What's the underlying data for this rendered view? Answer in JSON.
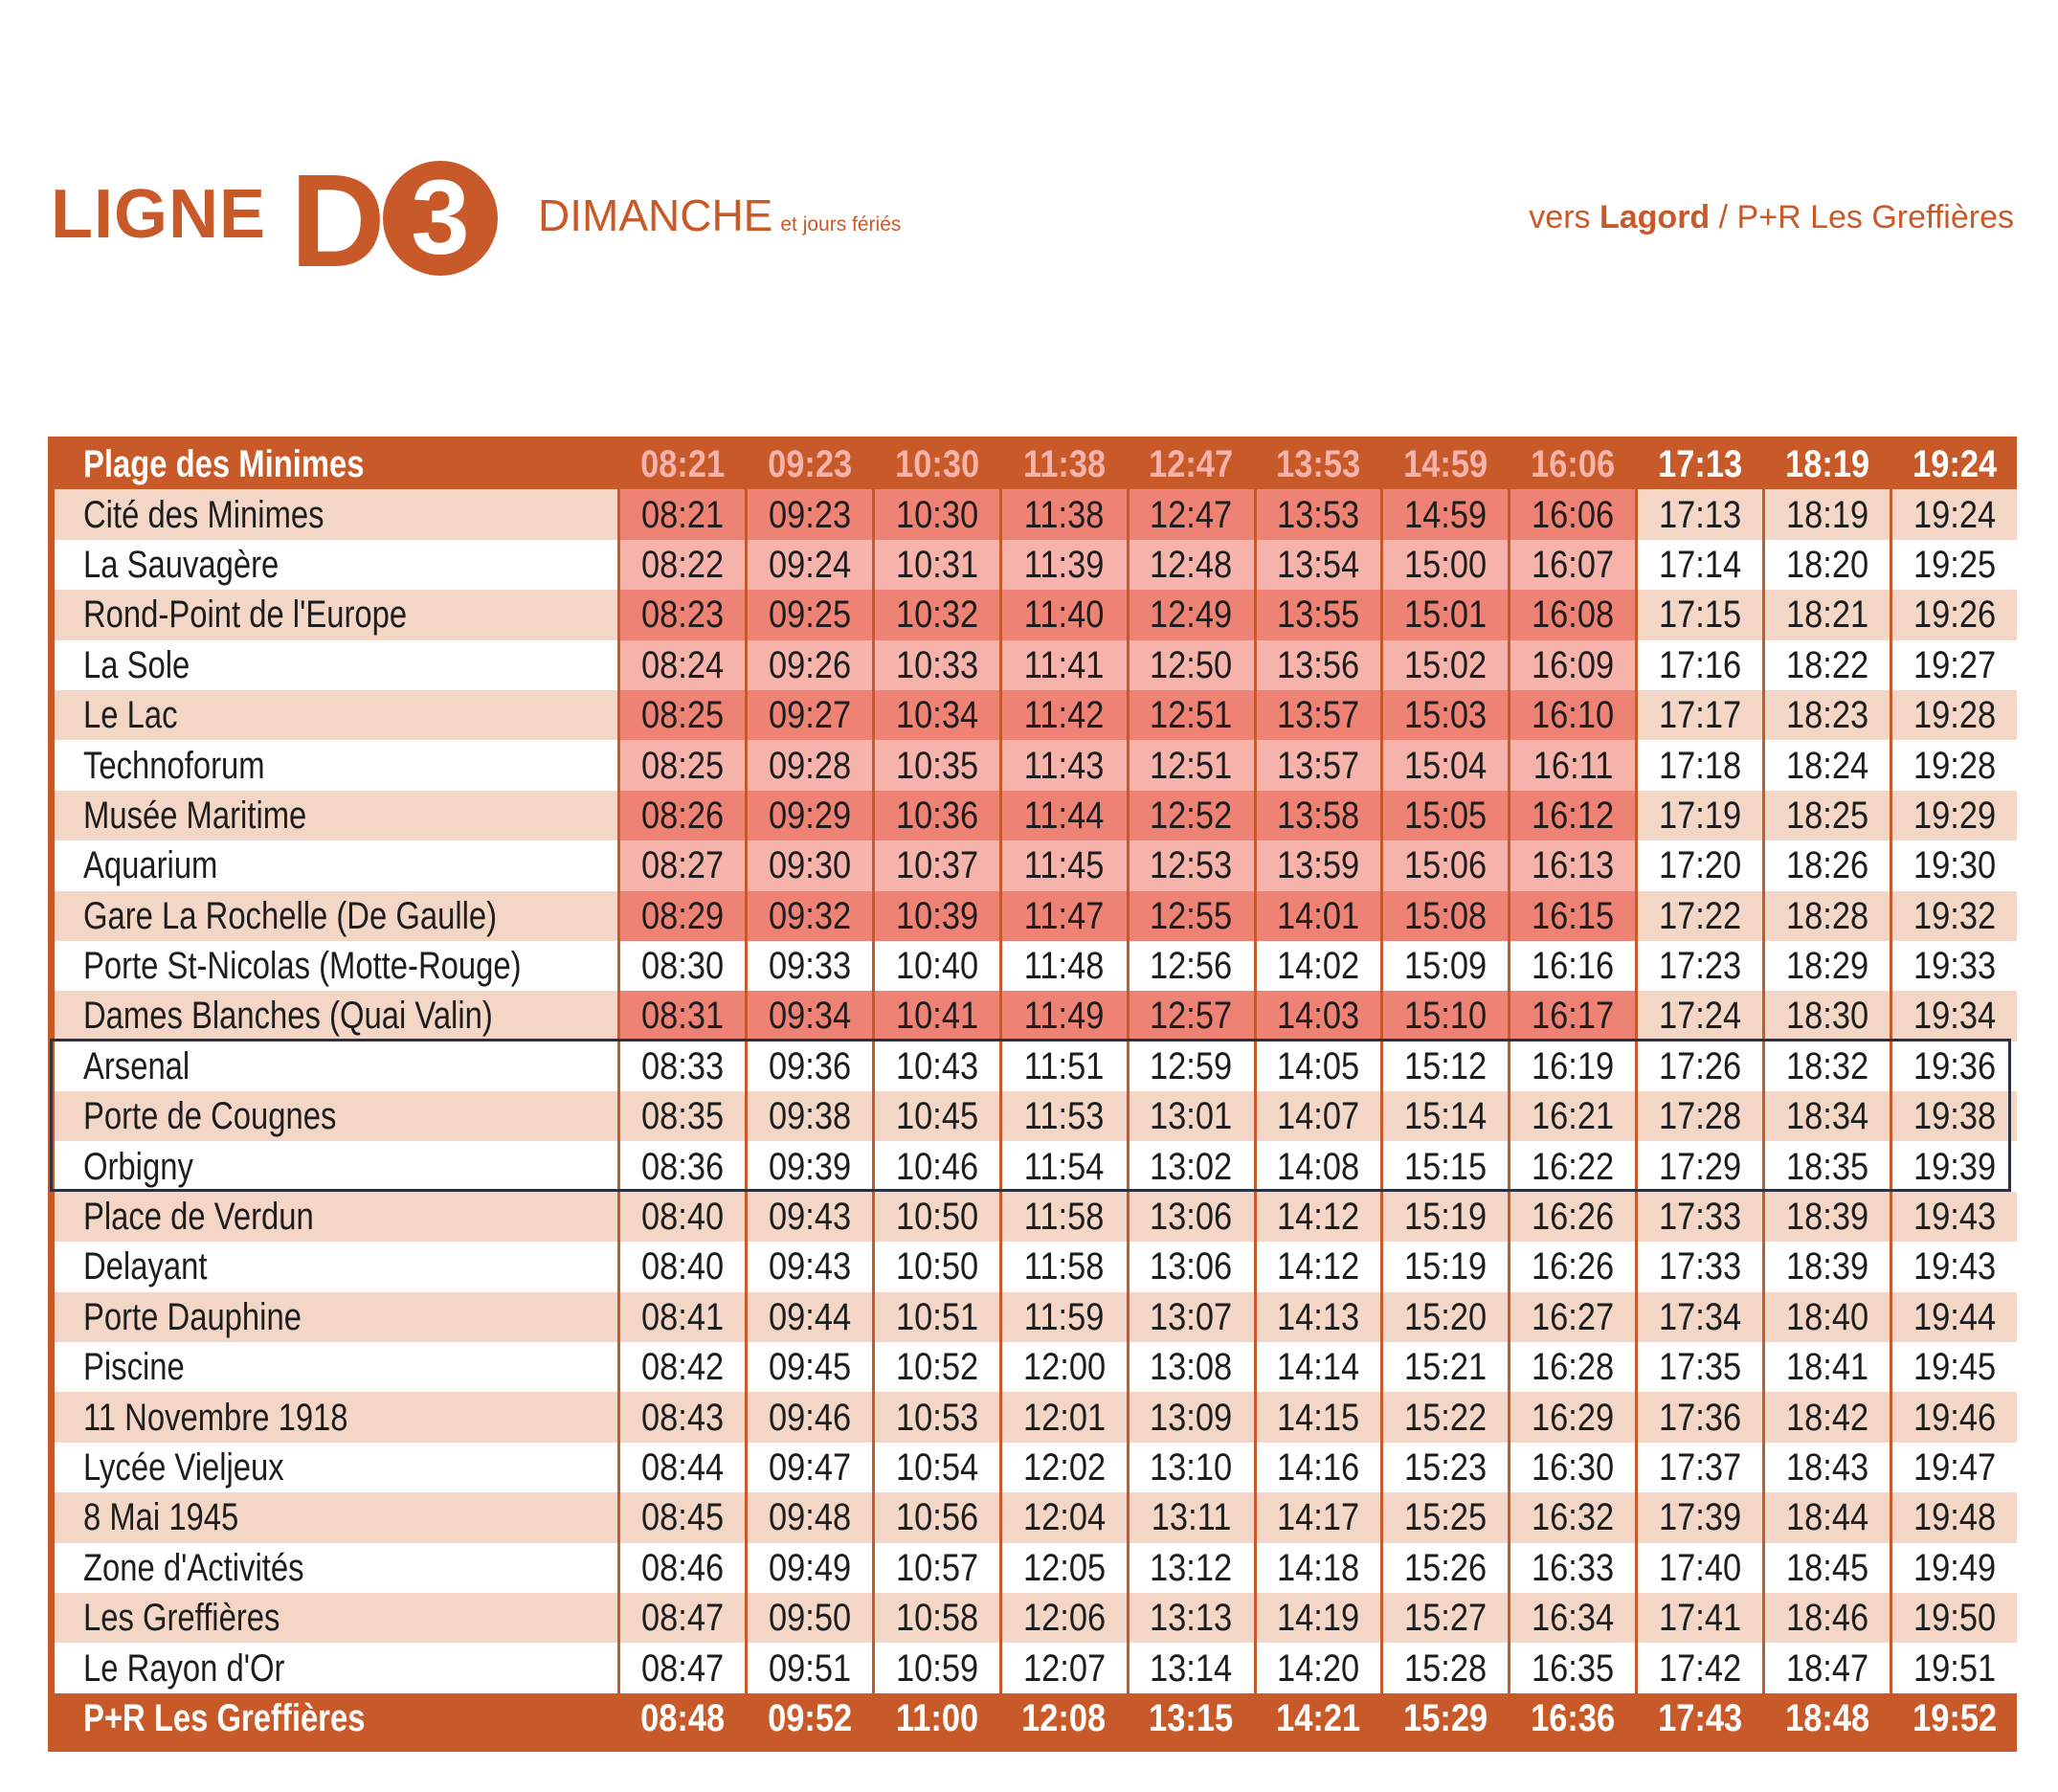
{
  "header": {
    "ligne_word": "LIGNE",
    "ligne_letter": "D",
    "ligne_number": "3",
    "day": "DIMANCHE",
    "day_note": "et jours fériés",
    "dest_prefix": "vers",
    "dest_main": "Lagord",
    "dest_suffix": "/ P+R Les Greffières"
  },
  "colors": {
    "brand_orange": "#c85a2a",
    "row_tint": "#f3d6c6",
    "highlight_dark": "#ee8275",
    "highlight_light": "#f6b3ac",
    "ring": "#2d3040"
  },
  "rows": [
    {
      "stop": "Plage des Minimes",
      "times": [
        "08:21",
        "09:23",
        "10:30",
        "11:38",
        "12:47",
        "13:53",
        "14:59",
        "16:06",
        "17:13",
        "18:19",
        "19:24"
      ]
    },
    {
      "stop": "Cité des Minimes",
      "times": [
        "08:21",
        "09:23",
        "10:30",
        "11:38",
        "12:47",
        "13:53",
        "14:59",
        "16:06",
        "17:13",
        "18:19",
        "19:24"
      ]
    },
    {
      "stop": "La Sauvagère",
      "times": [
        "08:22",
        "09:24",
        "10:31",
        "11:39",
        "12:48",
        "13:54",
        "15:00",
        "16:07",
        "17:14",
        "18:20",
        "19:25"
      ]
    },
    {
      "stop": "Rond-Point de l'Europe",
      "times": [
        "08:23",
        "09:25",
        "10:32",
        "11:40",
        "12:49",
        "13:55",
        "15:01",
        "16:08",
        "17:15",
        "18:21",
        "19:26"
      ]
    },
    {
      "stop": "La Sole",
      "times": [
        "08:24",
        "09:26",
        "10:33",
        "11:41",
        "12:50",
        "13:56",
        "15:02",
        "16:09",
        "17:16",
        "18:22",
        "19:27"
      ]
    },
    {
      "stop": "Le Lac",
      "times": [
        "08:25",
        "09:27",
        "10:34",
        "11:42",
        "12:51",
        "13:57",
        "15:03",
        "16:10",
        "17:17",
        "18:23",
        "19:28"
      ]
    },
    {
      "stop": "Technoforum",
      "times": [
        "08:25",
        "09:28",
        "10:35",
        "11:43",
        "12:51",
        "13:57",
        "15:04",
        "16:11",
        "17:18",
        "18:24",
        "19:28"
      ]
    },
    {
      "stop": "Musée Maritime",
      "times": [
        "08:26",
        "09:29",
        "10:36",
        "11:44",
        "12:52",
        "13:58",
        "15:05",
        "16:12",
        "17:19",
        "18:25",
        "19:29"
      ]
    },
    {
      "stop": "Aquarium",
      "times": [
        "08:27",
        "09:30",
        "10:37",
        "11:45",
        "12:53",
        "13:59",
        "15:06",
        "16:13",
        "17:20",
        "18:26",
        "19:30"
      ]
    },
    {
      "stop": "Gare La Rochelle (De Gaulle)",
      "times": [
        "08:29",
        "09:32",
        "10:39",
        "11:47",
        "12:55",
        "14:01",
        "15:08",
        "16:15",
        "17:22",
        "18:28",
        "19:32"
      ]
    },
    {
      "stop": "Porte St-Nicolas (Motte-Rouge)",
      "times": [
        "08:30",
        "09:33",
        "10:40",
        "11:48",
        "12:56",
        "14:02",
        "15:09",
        "16:16",
        "17:23",
        "18:29",
        "19:33"
      ]
    },
    {
      "stop": "Dames Blanches (Quai Valin)",
      "times": [
        "08:31",
        "09:34",
        "10:41",
        "11:49",
        "12:57",
        "14:03",
        "15:10",
        "16:17",
        "17:24",
        "18:30",
        "19:34"
      ]
    },
    {
      "stop": "Arsenal",
      "times": [
        "08:33",
        "09:36",
        "10:43",
        "11:51",
        "12:59",
        "14:05",
        "15:12",
        "16:19",
        "17:26",
        "18:32",
        "19:36"
      ]
    },
    {
      "stop": "Porte de Cougnes",
      "times": [
        "08:35",
        "09:38",
        "10:45",
        "11:53",
        "13:01",
        "14:07",
        "15:14",
        "16:21",
        "17:28",
        "18:34",
        "19:38"
      ]
    },
    {
      "stop": "Orbigny",
      "times": [
        "08:36",
        "09:39",
        "10:46",
        "11:54",
        "13:02",
        "14:08",
        "15:15",
        "16:22",
        "17:29",
        "18:35",
        "19:39"
      ]
    },
    {
      "stop": "Place de Verdun",
      "times": [
        "08:40",
        "09:43",
        "10:50",
        "11:58",
        "13:06",
        "14:12",
        "15:19",
        "16:26",
        "17:33",
        "18:39",
        "19:43"
      ]
    },
    {
      "stop": "Delayant",
      "times": [
        "08:40",
        "09:43",
        "10:50",
        "11:58",
        "13:06",
        "14:12",
        "15:19",
        "16:26",
        "17:33",
        "18:39",
        "19:43"
      ]
    },
    {
      "stop": "Porte Dauphine",
      "times": [
        "08:41",
        "09:44",
        "10:51",
        "11:59",
        "13:07",
        "14:13",
        "15:20",
        "16:27",
        "17:34",
        "18:40",
        "19:44"
      ]
    },
    {
      "stop": "Piscine",
      "times": [
        "08:42",
        "09:45",
        "10:52",
        "12:00",
        "13:08",
        "14:14",
        "15:21",
        "16:28",
        "17:35",
        "18:41",
        "19:45"
      ]
    },
    {
      "stop": "11 Novembre 1918",
      "times": [
        "08:43",
        "09:46",
        "10:53",
        "12:01",
        "13:09",
        "14:15",
        "15:22",
        "16:29",
        "17:36",
        "18:42",
        "19:46"
      ]
    },
    {
      "stop": "Lycée Vieljeux",
      "times": [
        "08:44",
        "09:47",
        "10:54",
        "12:02",
        "13:10",
        "14:16",
        "15:23",
        "16:30",
        "17:37",
        "18:43",
        "19:47"
      ]
    },
    {
      "stop": "8 Mai 1945",
      "times": [
        "08:45",
        "09:48",
        "10:56",
        "12:04",
        "13:11",
        "14:17",
        "15:25",
        "16:32",
        "17:39",
        "18:44",
        "19:48"
      ]
    },
    {
      "stop": "Zone d'Activités",
      "times": [
        "08:46",
        "09:49",
        "10:57",
        "12:05",
        "13:12",
        "14:18",
        "15:26",
        "16:33",
        "17:40",
        "18:45",
        "19:49"
      ]
    },
    {
      "stop": "Les Greffières",
      "times": [
        "08:47",
        "09:50",
        "10:58",
        "12:06",
        "13:13",
        "14:19",
        "15:27",
        "16:34",
        "17:41",
        "18:46",
        "19:50"
      ]
    },
    {
      "stop": "Le Rayon d'Or",
      "times": [
        "08:47",
        "09:51",
        "10:59",
        "12:07",
        "13:14",
        "14:20",
        "15:28",
        "16:35",
        "17:42",
        "18:47",
        "19:51"
      ]
    },
    {
      "stop": "P+R Les Greffières",
      "times": [
        "08:48",
        "09:52",
        "11:00",
        "12:08",
        "13:15",
        "14:21",
        "15:29",
        "16:36",
        "17:43",
        "18:48",
        "19:52"
      ]
    }
  ]
}
